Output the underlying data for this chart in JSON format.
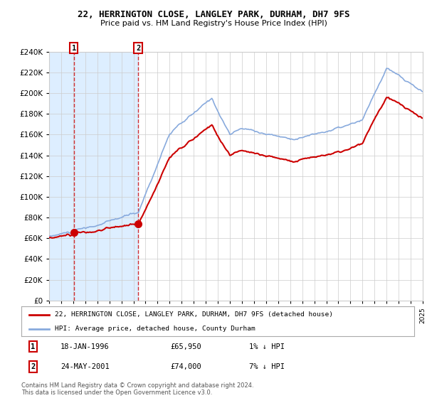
{
  "title": "22, HERRINGTON CLOSE, LANGLEY PARK, DURHAM, DH7 9FS",
  "subtitle": "Price paid vs. HM Land Registry's House Price Index (HPI)",
  "legend_line1": "22, HERRINGTON CLOSE, LANGLEY PARK, DURHAM, DH7 9FS (detached house)",
  "legend_line2": "HPI: Average price, detached house, County Durham",
  "sale1_date": "18-JAN-1996",
  "sale1_price": 65950,
  "sale1_hpi": "1% ↓ HPI",
  "sale2_date": "24-MAY-2001",
  "sale2_price": 74000,
  "sale2_hpi": "7% ↓ HPI",
  "footnote": "Contains HM Land Registry data © Crown copyright and database right 2024.\nThis data is licensed under the Open Government Licence v3.0.",
  "red_color": "#cc0000",
  "blue_color": "#88aadd",
  "shaded_color": "#ddeeff",
  "background_color": "#ffffff",
  "grid_color": "#cccccc",
  "ylim": [
    0,
    240000
  ],
  "yticks": [
    0,
    20000,
    40000,
    60000,
    80000,
    100000,
    120000,
    140000,
    160000,
    180000,
    200000,
    220000,
    240000
  ],
  "sale1_x": 1996.05,
  "sale2_x": 2001.39,
  "xmin": 1994,
  "xmax": 2025
}
